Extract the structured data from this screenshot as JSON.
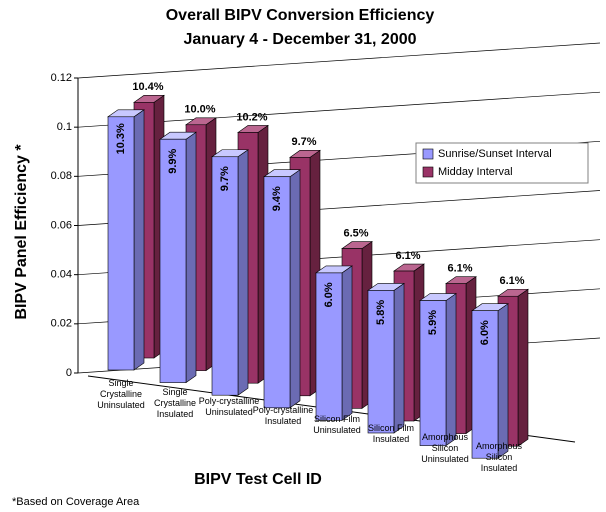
{
  "chart_data": {
    "type": "bar3d",
    "title": "Overall BIPV Conversion Efficiency",
    "subtitle": "January 4 - December 31, 2000",
    "y_label": "BIPV Panel Efficiency *",
    "x_label": "BIPV Test Cell ID",
    "footnote": "*Based on Coverage Area",
    "categories": [
      "Single Crystalline Uninsulated",
      "Single Crystalline Insulated",
      "Poly-crystalline Uninsulated",
      "Poly-crystalline Insulated",
      "Silicon Film Uninsulated",
      "Silicon Film Insulated",
      "Amorphous Silicon Uninsulated",
      "Amorphous Silicon Insulated"
    ],
    "series": [
      {
        "name": "Sunrise/Sunset Interval",
        "color": "#9999ff",
        "values": [
          0.103,
          0.099,
          0.097,
          0.094,
          0.06,
          0.058,
          0.059,
          0.06
        ],
        "value_labels": [
          "10.3%",
          "9.9%",
          "9.7%",
          "9.4%",
          "6.0%",
          "5.8%",
          "5.9%",
          "6.0%"
        ]
      },
      {
        "name": "Midday Interval",
        "color": "#993366",
        "values": [
          0.104,
          0.1,
          0.102,
          0.097,
          0.065,
          0.061,
          0.061,
          0.061
        ],
        "value_labels": [
          "10.4%",
          "10.0%",
          "10.2%",
          "9.7%",
          "6.5%",
          "6.1%",
          "6.1%",
          "6.1%"
        ]
      }
    ],
    "ylim": [
      0,
      0.12
    ],
    "yticks": [
      0,
      0.02,
      0.04,
      0.06,
      0.08,
      0.1,
      0.12
    ],
    "grid": true
  }
}
